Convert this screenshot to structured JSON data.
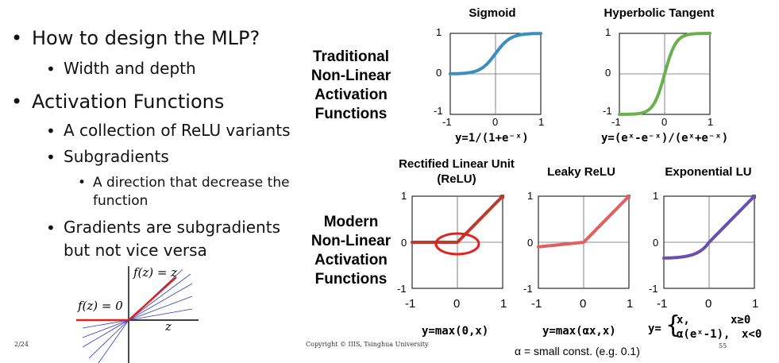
{
  "bullets": {
    "b1": "How to design the MLP?",
    "b1a": "Width and depth",
    "b2": "Activation Functions",
    "b2a": "A collection of ReLU variants",
    "b2b": "Subgradients",
    "b2b1_line1": "A direction that decrease the",
    "b2b1_line2": "function",
    "b2c_line1": "Gradients are subgradients",
    "b2c_line2": "but not vice versa"
  },
  "subgradient_figure": {
    "label_fz": "f(z) = z",
    "label_f0": "f(z) = 0",
    "label_z": "z"
  },
  "groups": {
    "traditional": [
      "Traditional",
      "Non-Linear",
      "Activation",
      "Functions"
    ],
    "modern": [
      "Modern",
      "Non-Linear",
      "Activation",
      "Functions"
    ]
  },
  "titles": {
    "sigmoid": "Sigmoid",
    "tanh": "Hyperbolic Tangent",
    "relu_line1": "Rectified Linear Unit",
    "relu_line2": "(ReLU)",
    "leaky": "Leaky ReLU",
    "elu": "Exponential LU"
  },
  "ticks": {
    "neg1": "-1",
    "zero": "0",
    "one": "1"
  },
  "equations": {
    "sigmoid": "y=1/(1+e⁻ˣ)",
    "tanh": "y=(eˣ-e⁻ˣ)/(eˣ+e⁻ˣ)",
    "relu": "y=max(0,x)",
    "leaky": "y=max(αx,x)",
    "elu_prefix": "y=",
    "elu_case1": "x,",
    "elu_cond1": "x≥0",
    "elu_case2": "α(eˣ-1),",
    "elu_cond2": "x<0"
  },
  "footer": {
    "page": "2/24",
    "copyright": "Copyright © IIIS, Tsinghua University",
    "num": "55",
    "alpha_note": "α = small const. (e.g. 0.1)"
  },
  "chart_data": [
    {
      "type": "line",
      "title": "Sigmoid",
      "xlim": [
        -1,
        1
      ],
      "ylim": [
        0,
        1
      ],
      "color": "#3a8fc0",
      "function": "1/(1+e^-x)"
    },
    {
      "type": "line",
      "title": "Hyperbolic Tangent",
      "xlim": [
        -1,
        1
      ],
      "ylim": [
        -1,
        1
      ],
      "color": "#6ab04c",
      "function": "tanh(x)"
    },
    {
      "type": "line",
      "title": "Rectified Linear Unit (ReLU)",
      "xlim": [
        -1,
        1
      ],
      "ylim": [
        -1,
        1
      ],
      "color": "#c0392b",
      "function": "max(0,x)",
      "x": [
        -1,
        0,
        1
      ],
      "y": [
        0,
        0,
        1
      ]
    },
    {
      "type": "line",
      "title": "Leaky ReLU",
      "xlim": [
        -1,
        1
      ],
      "ylim": [
        -1,
        1
      ],
      "color": "#e06060",
      "function": "max(0.1x,x)",
      "x": [
        -1,
        0,
        1
      ],
      "y": [
        -0.1,
        0,
        1
      ]
    },
    {
      "type": "line",
      "title": "Exponential LU",
      "xlim": [
        -1,
        1
      ],
      "ylim": [
        -1,
        1
      ],
      "color": "#6b4fb0",
      "function": "x if x>=0 else 0.5(e^x-1)"
    }
  ],
  "colors": {
    "red": "#e3201b",
    "blue": "#1f2fb8"
  }
}
